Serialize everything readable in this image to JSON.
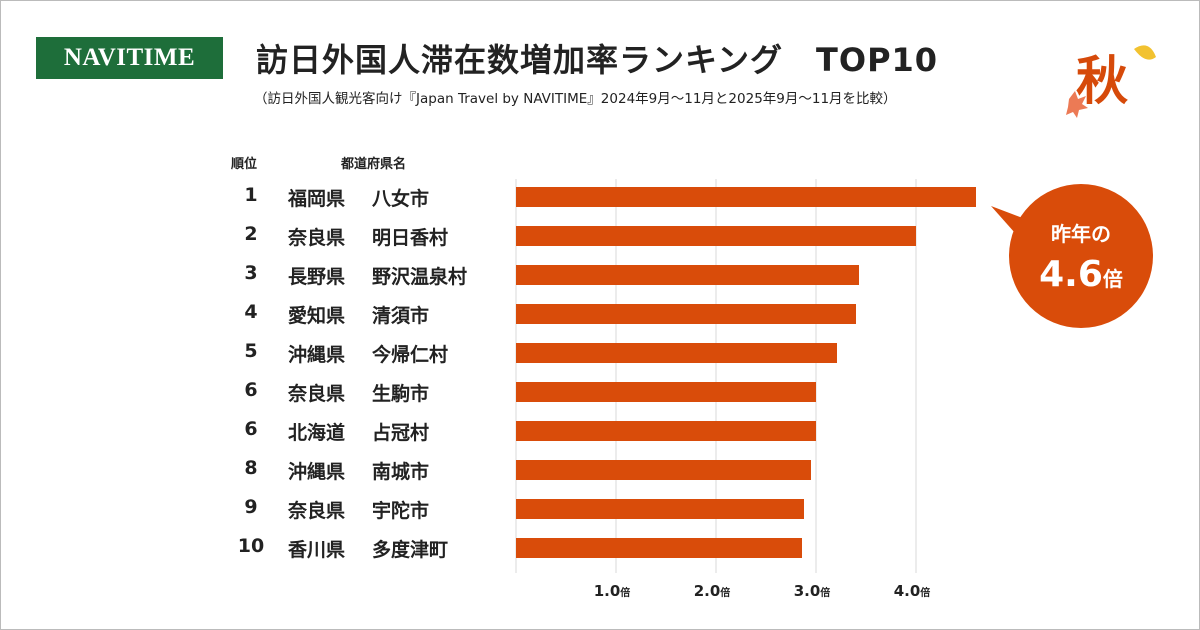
{
  "header": {
    "logo": "NAVITIME",
    "title": "訪日外国人滞在数増加率ランキング　TOP10",
    "subtitle": "（訪日外国人観光客向け『Japan Travel by NAVITIME』2024年9月～11月と2025年9月～11月を比較）",
    "season_badge": "秋"
  },
  "columns": {
    "rank": "順位",
    "name": "都道府県名"
  },
  "callout": {
    "line1": "昨年の",
    "value": "4.6",
    "unit": "倍"
  },
  "colors": {
    "bar": "#d94c0a",
    "logo": "#1e6e3a",
    "grid": "#d8d8d8"
  },
  "chart_data": {
    "type": "bar",
    "orientation": "horizontal",
    "xlim": [
      0,
      5
    ],
    "grid": true,
    "ticks": [
      {
        "value": 1,
        "label": "1.0",
        "unit": "倍"
      },
      {
        "value": 2,
        "label": "2.0",
        "unit": "倍"
      },
      {
        "value": 3,
        "label": "3.0",
        "unit": "倍"
      },
      {
        "value": 4,
        "label": "4.0",
        "unit": "倍"
      }
    ],
    "rows": [
      {
        "rank": "1",
        "prefecture": "福岡県",
        "city": "八女市",
        "value": 4.6
      },
      {
        "rank": "2",
        "prefecture": "奈良県",
        "city": "明日香村",
        "value": 4.0
      },
      {
        "rank": "3",
        "prefecture": "長野県",
        "city": "野沢温泉村",
        "value": 3.43
      },
      {
        "rank": "4",
        "prefecture": "愛知県",
        "city": "清須市",
        "value": 3.4
      },
      {
        "rank": "5",
        "prefecture": "沖縄県",
        "city": "今帰仁村",
        "value": 3.21
      },
      {
        "rank": "6",
        "prefecture": "奈良県",
        "city": "生駒市",
        "value": 3.0
      },
      {
        "rank": "6",
        "prefecture": "北海道",
        "city": "占冠村",
        "value": 3.0
      },
      {
        "rank": "8",
        "prefecture": "沖縄県",
        "city": "南城市",
        "value": 2.95
      },
      {
        "rank": "9",
        "prefecture": "奈良県",
        "city": "宇陀市",
        "value": 2.88
      },
      {
        "rank": "10",
        "prefecture": "香川県",
        "city": "多度津町",
        "value": 2.86
      }
    ]
  }
}
